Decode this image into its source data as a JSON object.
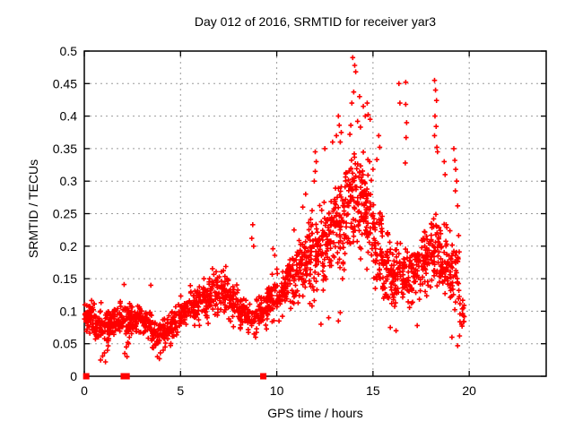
{
  "chart_data": {
    "type": "scatter",
    "title": "Day 012 of 2016, SRMTID for receiver yar3",
    "xlabel": "GPS time / hours",
    "ylabel": "SRMTID / TECUs",
    "xlim": [
      0,
      24
    ],
    "ylim": [
      0,
      0.5
    ],
    "xticks": [
      0,
      5,
      10,
      15,
      20
    ],
    "xtick_labels": [
      "0",
      "5",
      "10",
      "15",
      "20"
    ],
    "yticks": [
      0,
      0.05,
      0.1,
      0.15,
      0.2,
      0.25,
      0.3,
      0.35,
      0.4,
      0.45,
      0.5
    ],
    "ytick_labels": [
      "0",
      "0.05",
      "0.1",
      "0.15",
      "0.2",
      "0.25",
      "0.3",
      "0.35",
      "0.4",
      "0.45",
      "0.5"
    ],
    "grid": {
      "show": true,
      "style": "dotted",
      "color": "#9b9b9b"
    },
    "colors": {
      "marker": "#ff0000",
      "axis": "#000000",
      "background": "#ffffff",
      "text": "#000000"
    },
    "legend": "none",
    "series": [
      {
        "name": "SRMTID",
        "marker": "plus",
        "color": "#ff0000",
        "bands_format": [
          "x_start_hours",
          "x_end_hours",
          "point_count",
          "y_min_TECUs",
          "y_max_TECUs"
        ],
        "bands": [
          [
            0.0,
            0.5,
            55,
            0.06,
            0.125
          ],
          [
            0.5,
            1.0,
            50,
            0.045,
            0.12
          ],
          [
            1.0,
            1.5,
            50,
            0.04,
            0.115
          ],
          [
            1.5,
            2.0,
            50,
            0.055,
            0.12
          ],
          [
            2.0,
            2.5,
            48,
            0.05,
            0.12
          ],
          [
            2.5,
            3.0,
            48,
            0.055,
            0.115
          ],
          [
            3.0,
            3.5,
            46,
            0.05,
            0.115
          ],
          [
            3.5,
            4.0,
            42,
            0.03,
            0.1
          ],
          [
            4.0,
            4.5,
            42,
            0.04,
            0.105
          ],
          [
            4.5,
            5.0,
            44,
            0.055,
            0.115
          ],
          [
            5.0,
            5.5,
            46,
            0.065,
            0.135
          ],
          [
            5.5,
            6.0,
            46,
            0.07,
            0.15
          ],
          [
            6.0,
            6.5,
            48,
            0.075,
            0.165
          ],
          [
            6.5,
            7.0,
            48,
            0.08,
            0.175
          ],
          [
            7.0,
            7.5,
            48,
            0.08,
            0.185
          ],
          [
            7.5,
            8.0,
            46,
            0.07,
            0.155
          ],
          [
            8.0,
            8.5,
            42,
            0.06,
            0.13
          ],
          [
            8.5,
            9.0,
            38,
            0.05,
            0.125
          ],
          [
            9.0,
            9.5,
            42,
            0.06,
            0.14
          ],
          [
            9.5,
            10.0,
            46,
            0.07,
            0.17
          ],
          [
            10.0,
            10.5,
            48,
            0.08,
            0.185
          ],
          [
            10.5,
            11.0,
            50,
            0.09,
            0.21
          ],
          [
            11.0,
            11.5,
            52,
            0.1,
            0.235
          ],
          [
            11.5,
            12.0,
            52,
            0.1,
            0.26
          ],
          [
            12.0,
            12.5,
            56,
            0.11,
            0.29
          ],
          [
            12.5,
            13.0,
            56,
            0.12,
            0.31
          ],
          [
            13.0,
            13.5,
            56,
            0.12,
            0.33
          ],
          [
            13.5,
            14.0,
            58,
            0.15,
            0.38
          ],
          [
            14.0,
            14.5,
            58,
            0.16,
            0.4
          ],
          [
            14.5,
            15.0,
            56,
            0.14,
            0.37
          ],
          [
            15.0,
            15.5,
            52,
            0.11,
            0.3
          ],
          [
            15.5,
            16.0,
            50,
            0.09,
            0.24
          ],
          [
            16.0,
            16.5,
            50,
            0.09,
            0.22
          ],
          [
            16.5,
            17.0,
            50,
            0.09,
            0.22
          ],
          [
            17.0,
            17.5,
            50,
            0.09,
            0.23
          ],
          [
            17.5,
            18.0,
            50,
            0.1,
            0.26
          ],
          [
            18.0,
            18.5,
            52,
            0.1,
            0.28
          ],
          [
            18.5,
            19.0,
            50,
            0.1,
            0.26
          ],
          [
            19.0,
            19.5,
            46,
            0.08,
            0.24
          ],
          [
            19.5,
            19.75,
            12,
            0.05,
            0.13
          ]
        ],
        "points": [
          [
            13.95,
            0.49
          ],
          [
            14.05,
            0.478
          ],
          [
            14.1,
            0.468
          ],
          [
            14.0,
            0.437
          ],
          [
            14.3,
            0.43
          ],
          [
            13.9,
            0.42
          ],
          [
            14.5,
            0.415
          ],
          [
            14.7,
            0.42
          ],
          [
            14.6,
            0.4
          ],
          [
            14.75,
            0.402
          ],
          [
            14.85,
            0.395
          ],
          [
            14.2,
            0.392
          ],
          [
            14.35,
            0.383
          ],
          [
            13.85,
            0.386
          ],
          [
            13.8,
            0.372
          ],
          [
            13.2,
            0.4
          ],
          [
            13.25,
            0.386
          ],
          [
            13.35,
            0.375
          ],
          [
            13.1,
            0.37
          ],
          [
            12.9,
            0.36
          ],
          [
            13.3,
            0.36
          ],
          [
            12.5,
            0.35
          ],
          [
            12.0,
            0.345
          ],
          [
            12.05,
            0.33
          ],
          [
            12.0,
            0.315
          ],
          [
            11.95,
            0.3
          ],
          [
            15.3,
            0.37
          ],
          [
            15.35,
            0.352
          ],
          [
            15.2,
            0.333
          ],
          [
            16.35,
            0.45
          ],
          [
            16.4,
            0.42
          ],
          [
            16.7,
            0.452
          ],
          [
            16.7,
            0.418
          ],
          [
            16.75,
            0.39
          ],
          [
            16.72,
            0.367
          ],
          [
            16.68,
            0.328
          ],
          [
            18.2,
            0.455
          ],
          [
            18.25,
            0.44
          ],
          [
            18.3,
            0.424
          ],
          [
            18.22,
            0.4
          ],
          [
            18.28,
            0.384
          ],
          [
            18.2,
            0.37
          ],
          [
            18.32,
            0.352
          ],
          [
            18.35,
            0.345
          ],
          [
            18.7,
            0.33
          ],
          [
            18.75,
            0.31
          ],
          [
            19.2,
            0.35
          ],
          [
            19.25,
            0.332
          ],
          [
            19.3,
            0.318
          ],
          [
            19.35,
            0.3
          ],
          [
            19.28,
            0.285
          ],
          [
            19.4,
            0.262
          ],
          [
            11.5,
            0.28
          ],
          [
            11.35,
            0.26
          ],
          [
            10.9,
            0.225
          ],
          [
            8.75,
            0.233
          ],
          [
            8.7,
            0.212
          ],
          [
            8.8,
            0.2
          ],
          [
            9.8,
            0.196
          ],
          [
            9.9,
            0.186
          ],
          [
            2.07,
            0.141
          ],
          [
            3.46,
            0.14
          ],
          [
            0.85,
            0.025
          ],
          [
            0.95,
            0.031
          ],
          [
            1.1,
            0.022
          ],
          [
            1.05,
            0.036
          ],
          [
            1.2,
            0.04
          ],
          [
            2.1,
            0.035
          ],
          [
            2.18,
            0.045
          ],
          [
            2.22,
            0.03
          ],
          [
            2.3,
            0.05
          ],
          [
            3.8,
            0.03
          ],
          [
            3.9,
            0.027
          ],
          [
            3.95,
            0.036
          ],
          [
            4.1,
            0.04
          ],
          [
            4.2,
            0.045
          ],
          [
            12.3,
            0.08
          ],
          [
            12.7,
            0.09
          ],
          [
            13.2,
            0.085
          ],
          [
            13.3,
            0.098
          ],
          [
            15.9,
            0.075
          ],
          [
            16.2,
            0.07
          ],
          [
            17.3,
            0.078
          ],
          [
            19.1,
            0.06
          ],
          [
            19.4,
            0.047
          ],
          [
            19.5,
            0.062
          ],
          [
            19.6,
            0.08
          ],
          [
            19.65,
            0.095
          ],
          [
            19.7,
            0.105
          ]
        ]
      },
      {
        "name": "zero flags",
        "marker": "filled-square",
        "color": "#ff0000",
        "points": [
          [
            0.1,
            0
          ],
          [
            2.05,
            0
          ],
          [
            2.2,
            0
          ],
          [
            9.3,
            0
          ]
        ]
      }
    ]
  }
}
